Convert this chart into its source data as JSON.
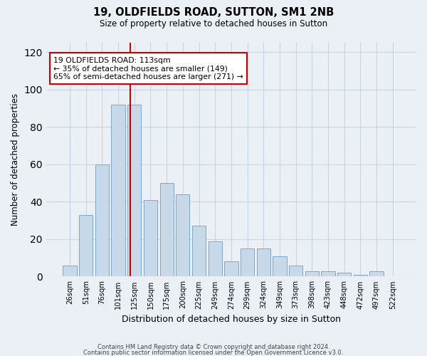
{
  "title1": "19, OLDFIELDS ROAD, SUTTON, SM1 2NB",
  "title2": "Size of property relative to detached houses in Sutton",
  "xlabel": "Distribution of detached houses by size in Sutton",
  "ylabel": "Number of detached properties",
  "bar_labels": [
    "26sqm",
    "51sqm",
    "76sqm",
    "101sqm",
    "125sqm",
    "150sqm",
    "175sqm",
    "200sqm",
    "225sqm",
    "249sqm",
    "274sqm",
    "299sqm",
    "324sqm",
    "349sqm",
    "373sqm",
    "398sqm",
    "423sqm",
    "448sqm",
    "472sqm",
    "497sqm",
    "522sqm"
  ],
  "bar_heights": [
    6,
    33,
    60,
    92,
    92,
    41,
    50,
    44,
    27,
    19,
    8,
    15,
    15,
    11,
    6,
    3,
    3,
    2,
    1,
    3,
    0
  ],
  "bar_color": "#c8d9ea",
  "bar_edge_color": "#7ca8cc",
  "marker_line_color": "#cc0000",
  "marker_bar_index": 3,
  "annotation_text": "19 OLDFIELDS ROAD: 113sqm\n← 35% of detached houses are smaller (149)\n65% of semi-detached houses are larger (271) →",
  "annotation_box_color": "#ffffff",
  "annotation_box_edge_color": "#cc0000",
  "ylim": [
    0,
    125
  ],
  "yticks": [
    0,
    20,
    40,
    60,
    80,
    100,
    120
  ],
  "grid_color": "#c8d4e0",
  "background_color": "#eaf0f6",
  "footer1": "Contains HM Land Registry data © Crown copyright and database right 2024.",
  "footer2": "Contains public sector information licensed under the Open Government Licence v3.0."
}
